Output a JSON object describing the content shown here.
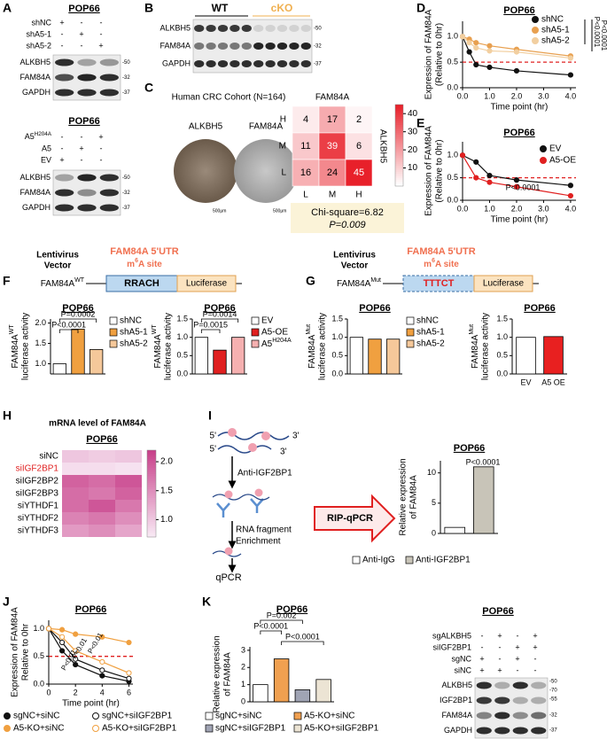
{
  "panels": {
    "A": {
      "letter": "A",
      "top": {
        "title": "POP66",
        "conditions": [
          {
            "name": "shNC",
            "signs": [
              "+",
              "-",
              "-"
            ]
          },
          {
            "name": "shA5-1",
            "signs": [
              "-",
              "+",
              "-"
            ]
          },
          {
            "name": "shA5-2",
            "signs": [
              "-",
              "-",
              "+"
            ]
          }
        ],
        "bands": [
          "ALKBH5",
          "FAM84A",
          "GAPDH"
        ],
        "markers": [
          "-50",
          "-32",
          "-37"
        ]
      },
      "bottom": {
        "title": "POP66",
        "conditions": [
          {
            "name": {
              "text": "A5",
              "sup": "H204A"
            },
            "signs": [
              "-",
              "-",
              "+"
            ]
          },
          {
            "name": "A5",
            "signs": [
              "-",
              "+",
              "-"
            ]
          },
          {
            "name": "EV",
            "signs": [
              "+",
              "-",
              "-"
            ]
          }
        ],
        "bands": [
          "ALKBH5",
          "FAM84A",
          "GAPDH"
        ],
        "markers": [
          "-50",
          "-32",
          "-37"
        ]
      }
    },
    "B": {
      "letter": "B",
      "groups": [
        "WT",
        "cKO"
      ],
      "bands": [
        "ALKBH5",
        "FAM84A",
        "GAPDH"
      ],
      "markers": [
        "-50",
        "-32",
        "-37"
      ]
    },
    "C": {
      "letter": "C",
      "title": "Human CRC Cohort (N=164)",
      "images": [
        "ALKBH5",
        "FAM84A"
      ],
      "scale_bars": [
        "500μm",
        "500μm"
      ],
      "heatmap": {
        "title": "FAM84A",
        "row_title": "ALKBH5",
        "rows": [
          "H",
          "M",
          "L"
        ],
        "columns": [
          "L",
          "M",
          "H"
        ],
        "values": [
          [
            4,
            17,
            2
          ],
          [
            11,
            39,
            6
          ],
          [
            16,
            24,
            45
          ]
        ],
        "clim": [
          0,
          45
        ],
        "cticks": [
          10,
          20,
          30,
          40
        ]
      },
      "stats": [
        "Chi-square=6.82",
        "P=0.009"
      ]
    },
    "D": {
      "letter": "D",
      "chart": {
        "type": "line",
        "title": "POP66",
        "ylabel": [
          "Expression of FAM84A",
          "(Relative to 0hr)"
        ],
        "xlabel": "Time point (hr)",
        "x": [
          0,
          0.25,
          0.5,
          1,
          2,
          4
        ],
        "series": [
          {
            "name": "shNC",
            "color": "#111111",
            "marker": "filled",
            "values": [
              1.0,
              0.7,
              0.45,
              0.4,
              0.33,
              0.25
            ]
          },
          {
            "name": "shA5-1",
            "color": "#e8a050",
            "marker": "filled",
            "values": [
              1.0,
              0.95,
              0.88,
              0.82,
              0.75,
              0.62
            ]
          },
          {
            "name": "shA5-2",
            "color": "#f2cfa0",
            "marker": "filled",
            "values": [
              1.0,
              0.88,
              0.78,
              0.72,
              0.7,
              0.58
            ]
          }
        ],
        "xlim": [
          0,
          4.2
        ],
        "ylim": [
          0,
          1.3
        ],
        "xticks": [
          {
            "value": 0,
            "label": "0.0"
          },
          {
            "value": 1,
            "label": "1.0"
          },
          {
            "value": 2,
            "label": "2.0"
          },
          {
            "value": 3,
            "label": "3.0"
          },
          {
            "value": 4,
            "label": "4.0"
          }
        ],
        "yticks": [
          {
            "value": 0,
            "label": "0.0"
          },
          0.5,
          {
            "value": 1,
            "label": "1.0"
          }
        ],
        "reference_line": 0.5,
        "annotations": [
          "P<0.0001",
          "P<0.0001"
        ]
      }
    },
    "E": {
      "letter": "E",
      "chart": {
        "type": "line",
        "title": "POP66",
        "ylabel": [
          "Expression of FAM84A",
          "(Relative to 0hr)"
        ],
        "xlabel": "Time point (hr)",
        "x": [
          0,
          0.5,
          1,
          2,
          4
        ],
        "series": [
          {
            "name": "EV",
            "color": "#111111",
            "marker": "filled",
            "values": [
              1.0,
              0.85,
              0.55,
              0.45,
              0.33
            ]
          },
          {
            "name": "A5-OE",
            "color": "#e02020",
            "marker": "filled",
            "values": [
              1.0,
              0.5,
              0.4,
              0.3,
              0.1
            ]
          }
        ],
        "xlim": [
          0,
          4.2
        ],
        "ylim": [
          0,
          1.3
        ],
        "xticks": [
          {
            "value": 0,
            "label": "0.0"
          },
          {
            "value": 1,
            "label": "1.0"
          },
          {
            "value": 2,
            "label": "2.0"
          },
          {
            "value": 3,
            "label": "3.0"
          },
          {
            "value": 4,
            "label": "4.0"
          }
        ],
        "yticks": [
          {
            "value": 0,
            "label": "0.0"
          },
          0.5,
          {
            "value": 1,
            "label": "1.0"
          }
        ],
        "reference_line": 0.5,
        "annotations": [
          "P<0.0001"
        ]
      }
    },
    "F": {
      "letter": "F",
      "construct": {
        "vector": [
          "Lentivirus",
          "Vector"
        ],
        "utr": "FAM84A 5'UTR",
        "site": {
          "pre": "m",
          "sup": "6",
          "post": "A site"
        },
        "name": {
          "text": "FAM84A",
          "sup": "WT"
        },
        "motif": "RRACH",
        "reporter": "Luciferase"
      },
      "charts": [
        {
          "type": "bar",
          "title": "POP66",
          "ylabel": [
            {
              "text": "FAM84A",
              "sup": "WT"
            },
            "luciferase activity"
          ],
          "categories": [
            "shNC",
            "shA5-1",
            "shA5-2"
          ],
          "values": [
            1.0,
            1.85,
            1.35
          ],
          "colors": [
            "#ffffff",
            "#f0a040",
            "#f5c89a"
          ],
          "ylim": [
            0.75,
            2.1
          ],
          "yticks": [
            {
              "value": 1,
              "label": "1.0"
            },
            1.5,
            {
              "value": 2,
              "label": "2.0"
            }
          ],
          "annotations": [
            "P=0.0002",
            "P<0.0001"
          ]
        },
        {
          "type": "bar",
          "title": "POP66",
          "ylabel": [
            {
              "text": "FAM84A",
              "sup": "WT"
            },
            "luciferase activity"
          ],
          "categories": [
            "EV",
            "A5-OE",
            {
              "text": "A5",
              "sup": "H204A"
            }
          ],
          "values": [
            1.0,
            0.65,
            1.0
          ],
          "colors": [
            "#ffffff",
            "#e02020",
            "#f5b0b0"
          ],
          "ylim": [
            0,
            1.5
          ],
          "yticks": [
            {
              "value": 0,
              "label": "0.0"
            },
            0.5,
            {
              "value": 1,
              "label": "1.0"
            },
            1.5
          ],
          "annotations": [
            "P=0.0014",
            "P=0.0015"
          ]
        }
      ]
    },
    "G": {
      "letter": "G",
      "construct": {
        "vector": [
          "Lentivirus",
          "Vector"
        ],
        "utr": "FAM84A 5'UTR",
        "site": {
          "pre": "m",
          "sup": "6",
          "post": "A site"
        },
        "name": {
          "text": "FAM84A",
          "sup": "Mut"
        },
        "motif": "TTTCT",
        "reporter": "Luciferase"
      },
      "charts": [
        {
          "type": "bar",
          "title": "POP66",
          "ylabel": [
            {
              "text": "FAM84A",
              "sup": "Mut"
            },
            "luciferase activity"
          ],
          "categories": [
            "shNC",
            "shA5-1",
            "shA5-2"
          ],
          "values": [
            1.0,
            0.95,
            0.95
          ],
          "colors": [
            "#ffffff",
            "#f0a040",
            "#f5c89a"
          ],
          "ylim": [
            0,
            1.5
          ],
          "yticks": [
            {
              "value": 0,
              "label": "0.0"
            },
            0.5,
            {
              "value": 1,
              "label": "1.0"
            },
            1.5
          ]
        },
        {
          "type": "bar",
          "title": "POP66",
          "ylabel": [
            {
              "text": "FAM84A",
              "sup": "Mut"
            },
            "luciferase activity"
          ],
          "categories": [
            "EV",
            "A5 OE"
          ],
          "values": [
            1.0,
            1.02
          ],
          "colors": [
            "#ffffff",
            "#e82020"
          ],
          "ylim": [
            0,
            1.5
          ],
          "yticks": [
            {
              "value": 0,
              "label": "0.0"
            },
            0.5,
            {
              "value": 1,
              "label": "1.0"
            },
            1.5
          ]
        }
      ]
    },
    "H": {
      "letter": "H",
      "title": "mRNA level of FAM84A",
      "subtitle": "POP66",
      "heatmap": {
        "rows": [
          "siNC",
          "siIGF2BP1",
          "siIGF2BP2",
          "siIGF2BP3",
          "siYTHDF1",
          "siYTHDF2",
          "siYTHDF3"
        ],
        "values": [
          [
            1.0,
            0.95,
            1.0
          ],
          [
            0.8,
            0.8,
            0.75
          ],
          [
            1.9,
            1.8,
            2.0
          ],
          [
            1.8,
            1.7,
            1.9
          ],
          [
            1.8,
            2.0,
            1.7
          ],
          [
            1.6,
            1.7,
            1.5
          ],
          [
            1.4,
            1.5,
            1.3
          ]
        ],
        "clim": [
          0.7,
          2.2
        ],
        "cticks": [
          {
            "value": 1,
            "label": "1.0"
          },
          1.5,
          {
            "value": 2,
            "label": "2.0"
          }
        ]
      }
    },
    "I": {
      "letter": "I",
      "diagram": {
        "ends": [
          "5'",
          "3'",
          "5'",
          "3'"
        ],
        "steps": [
          "Anti-IGF2BP1",
          "RNA fragment",
          "Enrichment",
          "qPCR"
        ],
        "method": "RIP-qPCR"
      },
      "chart": {
        "type": "bar",
        "title": "POP66",
        "ylabel": [
          "Relative expression",
          "of FAM84A"
        ],
        "categories": [
          "Anti-IgG",
          "Anti-IGF2BP1"
        ],
        "values": [
          1.0,
          11.0
        ],
        "colors": [
          "#ffffff",
          "#c8c4b8"
        ],
        "ylim": [
          0,
          12
        ],
        "yticks": [
          0,
          5,
          10
        ],
        "annotations": [
          "P<0.0001"
        ]
      }
    },
    "J": {
      "letter": "J",
      "chart": {
        "type": "line",
        "title": "POP66",
        "ylabel": [
          "Expression of FAM84A",
          "Relative to 0hr"
        ],
        "xlabel": "Time point (hr)",
        "x": [
          0,
          1,
          2,
          4,
          6
        ],
        "series": [
          {
            "name": "sgNC+siNC",
            "color": "#111111",
            "marker": "filled",
            "values": [
              1.0,
              0.6,
              0.35,
              0.15,
              0.05
            ]
          },
          {
            "name": "sgNC+siIGF2BP1",
            "color": "#111111",
            "marker": "open",
            "values": [
              1.0,
              0.75,
              0.45,
              0.25,
              0.1
            ]
          },
          {
            "name": "A5-KO+siNC",
            "color": "#f0a040",
            "marker": "filled",
            "values": [
              1.0,
              0.98,
              0.9,
              0.85,
              0.75
            ]
          },
          {
            "name": "A5-KO+siIGF2BP1",
            "color": "#f0a040",
            "marker": "open",
            "values": [
              1.0,
              0.85,
              0.6,
              0.4,
              0.2
            ]
          }
        ],
        "xlim": [
          0,
          6.3
        ],
        "ylim": [
          0,
          1.15
        ],
        "xticks": [
          0,
          2,
          4,
          6
        ],
        "yticks": [
          {
            "value": 0,
            "label": "0.0"
          },
          0.5,
          {
            "value": 1,
            "label": "1.0"
          }
        ],
        "reference_line": 0.5,
        "annotations": [
          "P<0.01",
          "P<0.01",
          "P<0.01"
        ]
      }
    },
    "K": {
      "letter": "K",
      "chart": {
        "type": "bar",
        "title": "POP66",
        "ylabel": [
          "Relative expression",
          "of FAM84A"
        ],
        "categories": [
          "sgNC+siNC",
          "A5-KO+siNC",
          "sgNC+siIGF2BP1",
          "A5-KO+siIGF2BP1"
        ],
        "values": [
          1.0,
          2.5,
          0.7,
          1.3
        ],
        "colors": [
          "#ffffff",
          "#f0a050",
          "#a0a4b4",
          "#ece4d4"
        ],
        "ylim": [
          0,
          3.2
        ],
        "yticks": [
          0,
          1,
          2,
          3
        ],
        "annotations": [
          "P=0.002",
          "P<0.0001",
          "P<0.0001"
        ]
      },
      "blot": {
        "title": "POP66",
        "conditions": [
          {
            "name": "sgALKBH5",
            "signs": [
              "-",
              "+",
              "-",
              "+"
            ]
          },
          {
            "name": "siIGF2BP1",
            "signs": [
              "-",
              "-",
              "+",
              "+"
            ]
          },
          {
            "name": "sgNC",
            "signs": [
              "+",
              "-",
              "+",
              "-"
            ]
          },
          {
            "name": "siNC",
            "signs": [
              "+",
              "+",
              "-",
              "-"
            ]
          }
        ],
        "bands": [
          "ALKBH5",
          "IGF2BP1",
          "FAM84A",
          "GAPDH"
        ],
        "markers": [
          "-50",
          "-70",
          "-55",
          "-32",
          "-37"
        ]
      }
    }
  }
}
